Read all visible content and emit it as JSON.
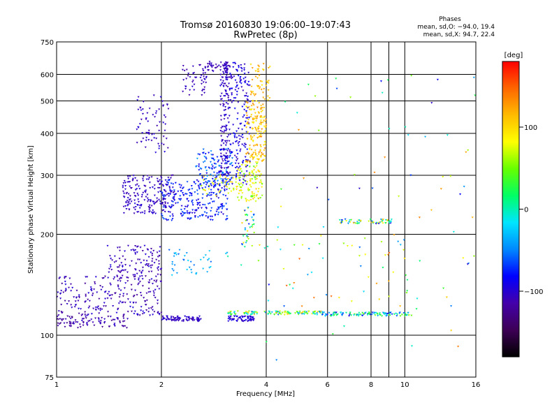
{
  "chart_data": {
    "type": "scatter",
    "title": "Tromsø 20160830 19:06:00–19:07:43",
    "subtitle": "RwPretec (8p)",
    "xlabel": "Frequency [MHz]",
    "ylabel": "Stationary phase Virtual Height [km]",
    "x_scale": "log",
    "y_scale": "log",
    "xlim": [
      1,
      16
    ],
    "ylim": [
      75,
      750
    ],
    "x_ticks": [
      "1",
      "2",
      "4",
      "6",
      "8",
      "10",
      "16"
    ],
    "x_tick_values": [
      1,
      2,
      4,
      6,
      8,
      10,
      16
    ],
    "y_ticks": [
      "75",
      "100",
      "200",
      "300",
      "400",
      "500",
      "600",
      "750"
    ],
    "y_tick_values": [
      75,
      100,
      200,
      300,
      400,
      500,
      600,
      750
    ],
    "x_grid": [
      1,
      2,
      4,
      6,
      8,
      9,
      10,
      16
    ],
    "y_grid": [
      100,
      200,
      300,
      400,
      500,
      600
    ],
    "grid": true,
    "legend": {
      "title": "Phases",
      "lines": [
        "mean, sd,O: −94.0, 19.4",
        "mean, sd,X:  94.7, 22.4"
      ],
      "position": "top-right"
    },
    "colorbar": {
      "label": "[deg]",
      "range": [
        -180,
        180
      ],
      "ticks": [
        "100",
        "0",
        "−100"
      ],
      "tick_values": [
        100,
        0,
        -100
      ],
      "position": "right"
    },
    "color_stops": [
      "#000000",
      "#3d0055",
      "#4400aa",
      "#0000ff",
      "#0088ff",
      "#00e5ff",
      "#00ff66",
      "#66ff00",
      "#ffff00",
      "#ffbb00",
      "#ff6600",
      "#ff0000"
    ],
    "clusters": [
      {
        "x": [
          1.0,
          1.6
        ],
        "y": [
          105,
          114
        ],
        "phase": [
          -130,
          -100
        ],
        "n": 90
      },
      {
        "x": [
          1.0,
          2.0
        ],
        "y": [
          114,
          150
        ],
        "phase": [
          -125,
          -95
        ],
        "n": 220
      },
      {
        "x": [
          1.4,
          2.0
        ],
        "y": [
          145,
          185
        ],
        "phase": [
          -120,
          -95
        ],
        "n": 120
      },
      {
        "x": [
          2.0,
          2.6
        ],
        "y": [
          110,
          114
        ],
        "phase": [
          -115,
          -95
        ],
        "n": 80
      },
      {
        "x": [
          1.55,
          2.2
        ],
        "y": [
          230,
          300
        ],
        "phase": [
          -115,
          -95
        ],
        "n": 200
      },
      {
        "x": [
          2.0,
          3.1
        ],
        "y": [
          220,
          290
        ],
        "phase": [
          -100,
          -60
        ],
        "n": 240
      },
      {
        "x": [
          2.5,
          3.2
        ],
        "y": [
          280,
          360
        ],
        "phase": [
          -95,
          -40
        ],
        "n": 140
      },
      {
        "x": [
          1.7,
          2.1
        ],
        "y": [
          350,
          520
        ],
        "phase": [
          -115,
          -95
        ],
        "n": 70
      },
      {
        "x": [
          2.3,
          2.7
        ],
        "y": [
          520,
          640
        ],
        "phase": [
          -115,
          -100
        ],
        "n": 50
      },
      {
        "x": [
          2.7,
          3.1
        ],
        "y": [
          610,
          655
        ],
        "phase": [
          -115,
          -100
        ],
        "n": 40
      },
      {
        "x": [
          2.95,
          3.15
        ],
        "y": [
          300,
          640
        ],
        "phase": [
          -115,
          -95
        ],
        "n": 150
      },
      {
        "x": [
          3.15,
          3.6
        ],
        "y": [
          280,
          650
        ],
        "phase": [
          -110,
          -80
        ],
        "n": 170
      },
      {
        "x": [
          3.1,
          3.7
        ],
        "y": [
          110,
          114
        ],
        "phase": [
          -110,
          -90
        ],
        "n": 60
      },
      {
        "x": [
          3.3,
          3.9
        ],
        "y": [
          250,
          330
        ],
        "phase": [
          40,
          110
        ],
        "n": 110
      },
      {
        "x": [
          3.5,
          4.0
        ],
        "y": [
          330,
          500
        ],
        "phase": [
          80,
          140
        ],
        "n": 160
      },
      {
        "x": [
          3.6,
          4.1
        ],
        "y": [
          500,
          650
        ],
        "phase": [
          90,
          130
        ],
        "n": 50
      },
      {
        "x": [
          2.6,
          3.3
        ],
        "y": [
          260,
          300
        ],
        "phase": [
          60,
          110
        ],
        "n": 40
      },
      {
        "x": [
          2.1,
          2.8
        ],
        "y": [
          150,
          180
        ],
        "phase": [
          -60,
          -20
        ],
        "n": 40
      },
      {
        "x": [
          3.4,
          3.7
        ],
        "y": [
          180,
          240
        ],
        "phase": [
          -90,
          110
        ],
        "n": 40
      },
      {
        "x": [
          3.1,
          5.8
        ],
        "y": [
          115,
          118
        ],
        "phase": [
          -60,
          120
        ],
        "n": 120
      },
      {
        "x": [
          5.8,
          10.5
        ],
        "y": [
          114,
          117
        ],
        "phase": [
          -90,
          60
        ],
        "n": 110
      },
      {
        "x": [
          6.5,
          9.2
        ],
        "y": [
          215,
          222
        ],
        "phase": [
          -100,
          120
        ],
        "n": 60
      },
      {
        "x": [
          3.0,
          11.5
        ],
        "y": [
          120,
          200
        ],
        "phase": [
          -60,
          150
        ],
        "n": 50
      },
      {
        "x": [
          4.0,
          16.0
        ],
        "y": [
          80,
          600
        ],
        "phase": [
          -110,
          140
        ],
        "n": 80
      }
    ]
  }
}
